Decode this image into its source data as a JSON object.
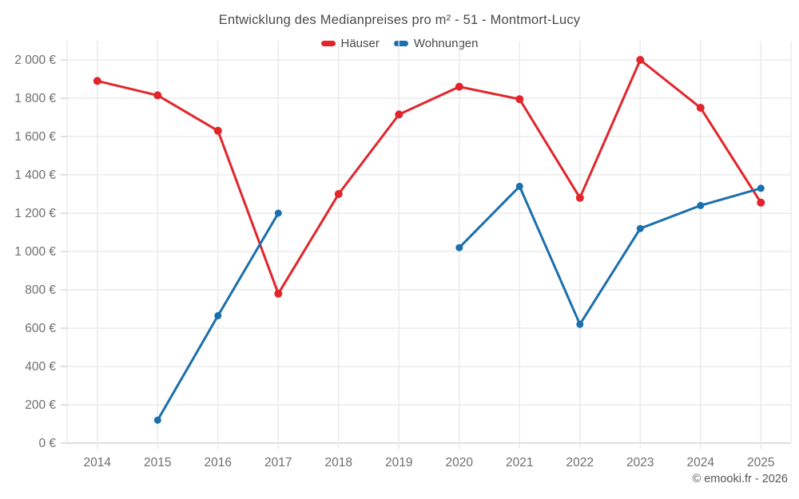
{
  "title": "Entwicklung des Medianpreises pro m² - 51 - Montmort-Lucy",
  "copyright": "© emooki.fr - 2026",
  "colors": {
    "haeuser": "#e1252b",
    "wohnungen": "#1a6fad",
    "grid": "#e7e7e7",
    "axis_line": "#c9c9c9",
    "tick": "#cfcfcf",
    "title_text": "#4a4a4a",
    "axis_text": "#6e6e6e"
  },
  "chart_data": {
    "type": "line",
    "title": "Entwicklung des Medianpreises pro m² - 51 - Montmort-Lucy",
    "xlabel": "",
    "ylabel": "",
    "x": [
      "2014",
      "2015",
      "2016",
      "2017",
      "2018",
      "2019",
      "2020",
      "2021",
      "2022",
      "2023",
      "2024",
      "2025"
    ],
    "series": [
      {
        "name": "Häuser",
        "color": "#e1252b",
        "values": [
          1890,
          1815,
          1630,
          780,
          1300,
          1715,
          1860,
          1795,
          1280,
          2000,
          1750,
          1255
        ]
      },
      {
        "name": "Wohnungen",
        "color": "#1a6fad",
        "values": [
          null,
          120,
          665,
          1200,
          null,
          null,
          1020,
          1340,
          620,
          1120,
          1240,
          1330
        ]
      }
    ],
    "ylim": [
      0,
      2000
    ],
    "y_step": 200,
    "y_tick_labels": [
      "0 €",
      "200 €",
      "400 €",
      "600 €",
      "800 €",
      "1 000 €",
      "1 200 €",
      "1 400 €",
      "1 600 €",
      "1 800 €",
      "2 000 €"
    ],
    "grid": true,
    "legend_position": "top"
  }
}
